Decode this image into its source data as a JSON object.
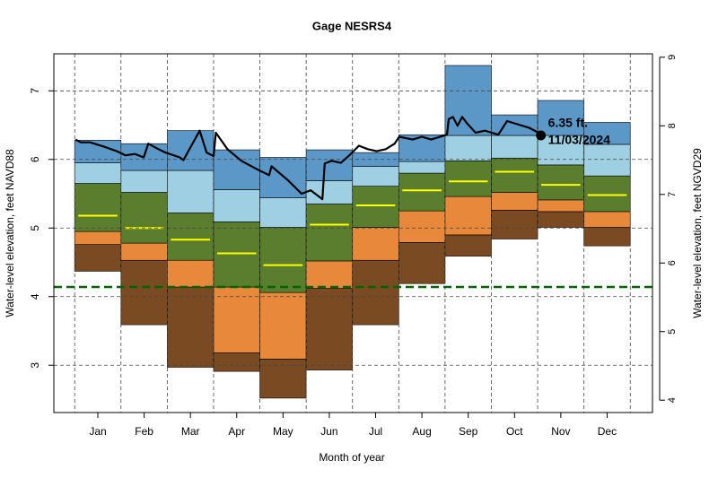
{
  "chart_data": {
    "type": "percentile-bands",
    "title": "Gage NESRS4",
    "xlabel": "Month of year",
    "ylabel": "Water-level elevation, feet NAVD88",
    "y2label": "Water-level elevation, feet NGVD29",
    "categories": [
      "Jan",
      "Feb",
      "Mar",
      "Apr",
      "May",
      "Jun",
      "Jul",
      "Aug",
      "Sep",
      "Oct",
      "Nov",
      "Dec"
    ],
    "xlim": [
      -0.45,
      12.48
    ],
    "ylim": [
      2.31,
      7.54
    ],
    "yticks": [
      3,
      4,
      5,
      6,
      7
    ],
    "y2lim": [
      3.82,
      9.05
    ],
    "y2ticks": [
      4,
      5,
      6,
      7,
      8,
      9
    ],
    "grid": true,
    "levels": {
      "min": [
        4.37,
        3.59,
        2.97,
        2.91,
        2.52,
        2.93,
        3.59,
        4.19,
        4.59,
        4.84,
        5.01,
        4.74
      ],
      "p10": [
        4.76,
        4.53,
        4.14,
        3.18,
        3.09,
        4.12,
        4.53,
        4.79,
        4.9,
        5.26,
        5.24,
        5.01
      ],
      "p25": [
        4.95,
        4.78,
        4.53,
        4.14,
        4.06,
        4.52,
        5.01,
        5.25,
        5.46,
        5.52,
        5.41,
        5.24
      ],
      "p75": [
        5.65,
        5.52,
        5.22,
        5.09,
        5.01,
        5.35,
        5.61,
        5.8,
        5.98,
        6.02,
        5.92,
        5.76
      ],
      "p90": [
        5.95,
        5.84,
        5.84,
        5.56,
        5.44,
        5.69,
        5.9,
        5.97,
        6.35,
        6.35,
        6.35,
        6.22
      ],
      "max": [
        6.28,
        6.23,
        6.42,
        6.14,
        6.03,
        6.14,
        6.1,
        6.36,
        7.37,
        6.65,
        6.86,
        6.54
      ]
    },
    "band_colors": [
      "#7a4a22",
      "#e8883a",
      "#5a7d2e",
      "#9ecfe2",
      "#5b98c8"
    ],
    "median": [
      5.18,
      5.0,
      4.83,
      4.63,
      4.46,
      5.05,
      5.33,
      5.55,
      5.68,
      5.82,
      5.63,
      5.48
    ],
    "median_color": "#ffff00",
    "line": {
      "color": "#000000",
      "x": [
        0.02,
        0.13,
        0.33,
        0.62,
        0.91,
        1.1,
        1.3,
        1.49,
        1.59,
        1.78,
        1.96,
        2.27,
        2.35,
        2.7,
        2.85,
        3.0,
        3.05,
        3.3,
        3.6,
        3.9,
        4.2,
        4.25,
        4.6,
        4.9,
        5.1,
        5.35,
        5.4,
        5.55,
        5.75,
        5.95,
        6.14,
        6.33,
        6.52,
        6.72,
        6.91,
        7.01,
        7.3,
        7.5,
        7.7,
        8.04,
        8.08,
        8.17,
        8.27,
        8.37,
        8.47,
        8.66,
        8.86,
        9.01,
        9.15,
        9.34,
        9.53,
        9.82,
        10.02,
        10.07
      ],
      "y": [
        6.29,
        6.25,
        6.25,
        6.19,
        6.12,
        6.06,
        6.08,
        6.03,
        6.23,
        6.16,
        6.1,
        6.03,
        5.99,
        6.42,
        6.1,
        6.05,
        6.39,
        6.15,
        5.98,
        5.87,
        5.77,
        5.9,
        5.7,
        5.5,
        5.55,
        5.42,
        5.94,
        5.98,
        5.95,
        6.07,
        6.2,
        6.15,
        6.12,
        6.15,
        6.23,
        6.33,
        6.29,
        6.33,
        6.29,
        6.36,
        6.59,
        6.62,
        6.49,
        6.62,
        6.53,
        6.39,
        6.42,
        6.39,
        6.36,
        6.56,
        6.52,
        6.46,
        6.39,
        6.35
      ]
    },
    "point": {
      "x": 10.07,
      "y": 6.35,
      "label": "6.35 ft.",
      "date": "11/03/2024"
    },
    "hline": {
      "y": 4.14,
      "color": "#006400"
    }
  }
}
